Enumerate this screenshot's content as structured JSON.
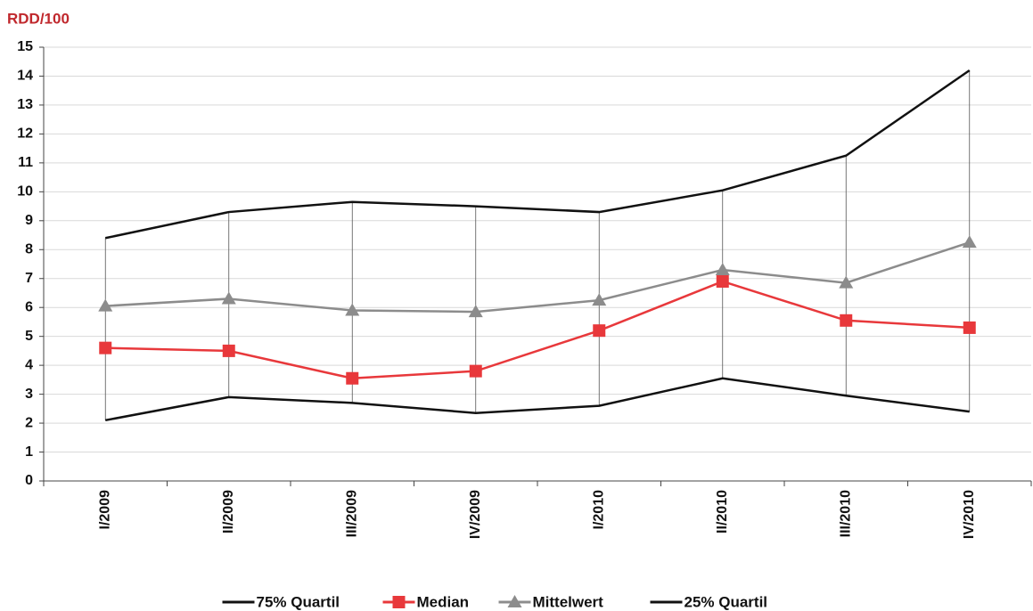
{
  "chart_data": {
    "type": "line",
    "title": "RDD/100",
    "categories": [
      "I/2009",
      "II/2009",
      "III/2009",
      "IV/2009",
      "I/2010",
      "II/2010",
      "III/2010",
      "IV/2010"
    ],
    "series": [
      {
        "name": "75% Quartil",
        "color": "#111111",
        "marker": "none",
        "values": [
          8.4,
          9.3,
          9.65,
          9.5,
          9.3,
          10.05,
          11.25,
          14.2
        ]
      },
      {
        "name": "Median",
        "color": "#e8383b",
        "marker": "square",
        "values": [
          4.6,
          4.5,
          3.55,
          3.8,
          5.2,
          6.9,
          5.55,
          5.3
        ]
      },
      {
        "name": "Mittelwert",
        "color": "#8c8c8c",
        "marker": "triangle",
        "values": [
          6.05,
          6.3,
          5.9,
          5.85,
          6.25,
          7.3,
          6.85,
          8.25
        ]
      },
      {
        "name": "25% Quartil",
        "color": "#111111",
        "marker": "none",
        "values": [
          2.1,
          2.9,
          2.7,
          2.35,
          2.6,
          3.55,
          2.95,
          2.4
        ]
      }
    ],
    "ylim": [
      0,
      15
    ],
    "yticks": [
      0,
      1,
      2,
      3,
      4,
      5,
      6,
      7,
      8,
      9,
      10,
      11,
      12,
      13,
      14,
      15
    ],
    "grid": true,
    "hi_lo_lines": true,
    "legend": "bottom"
  }
}
